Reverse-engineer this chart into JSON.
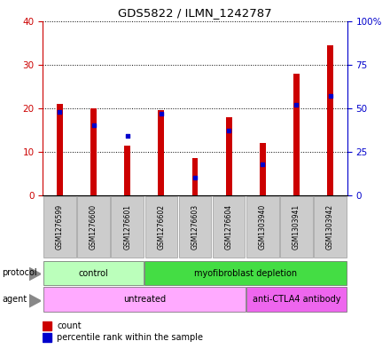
{
  "title": "GDS5822 / ILMN_1242787",
  "samples": [
    "GSM1276599",
    "GSM1276600",
    "GSM1276601",
    "GSM1276602",
    "GSM1276603",
    "GSM1276604",
    "GSM1303940",
    "GSM1303941",
    "GSM1303942"
  ],
  "count_values": [
    21,
    20,
    11.5,
    19.5,
    8.5,
    18,
    12,
    28,
    34.5
  ],
  "percentile_values": [
    48,
    40,
    34,
    47,
    10,
    37,
    18,
    52,
    57
  ],
  "ylim_left": [
    0,
    40
  ],
  "ylim_right": [
    0,
    100
  ],
  "yticks_left": [
    0,
    10,
    20,
    30,
    40
  ],
  "yticks_right": [
    0,
    25,
    50,
    75,
    100
  ],
  "ytick_labels_right": [
    "0",
    "25",
    "50",
    "75",
    "100%"
  ],
  "bar_color": "#cc0000",
  "percentile_color": "#0000cc",
  "protocol_groups": [
    {
      "label": "control",
      "start": 0,
      "end": 3,
      "color": "#bbffbb"
    },
    {
      "label": "myofibroblast depletion",
      "start": 3,
      "end": 9,
      "color": "#44dd44"
    }
  ],
  "agent_groups": [
    {
      "label": "untreated",
      "start": 0,
      "end": 6,
      "color": "#ffaaff"
    },
    {
      "label": "anti-CTLA4 antibody",
      "start": 6,
      "end": 9,
      "color": "#ee66ee"
    }
  ],
  "legend_count_label": "count",
  "legend_percentile_label": "percentile rank within the sample",
  "left_tick_color": "#cc0000",
  "right_tick_color": "#0000cc",
  "bar_width": 0.18,
  "sample_box_color": "#cccccc",
  "sample_box_edge": "#999999"
}
